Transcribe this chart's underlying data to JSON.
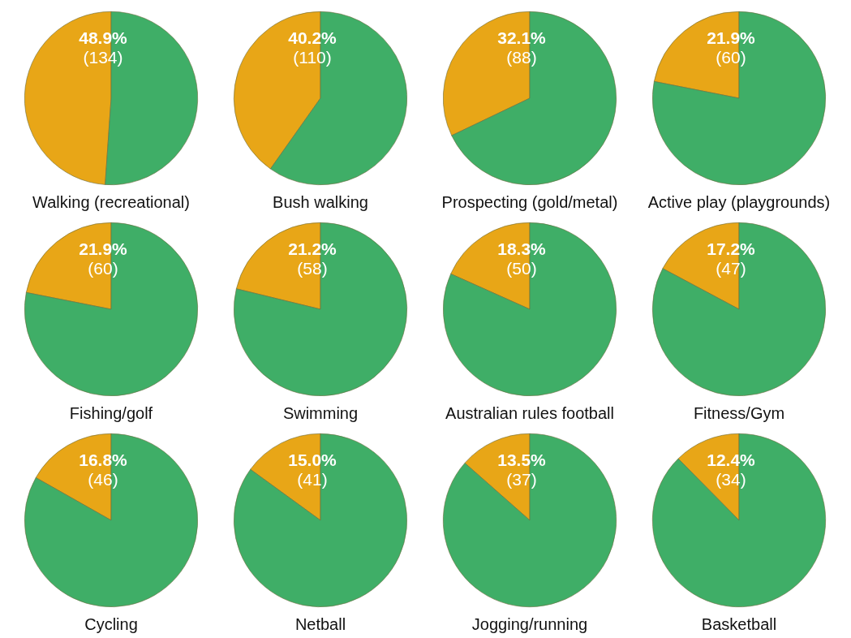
{
  "chart_data": [
    {
      "type": "pie",
      "title": "Walking (recreational)",
      "categories": [
        null,
        null
      ],
      "values": [
        48.9,
        51.1
      ],
      "colors": [
        "#e8a617",
        "#3fae67"
      ],
      "value_labels": [
        "48.9%\n(134)",
        null
      ],
      "legend": false
    },
    {
      "type": "pie",
      "title": "Bush walking",
      "categories": [
        null,
        null
      ],
      "values": [
        40.2,
        59.8
      ],
      "colors": [
        "#e8a617",
        "#3fae67"
      ],
      "value_labels": [
        "40.2%\n(110)",
        null
      ],
      "legend": false
    },
    {
      "type": "pie",
      "title": "Prospecting (gold/metal)",
      "categories": [
        null,
        null
      ],
      "values": [
        32.1,
        67.9
      ],
      "colors": [
        "#e8a617",
        "#3fae67"
      ],
      "value_labels": [
        "32.1%\n(88)",
        null
      ],
      "legend": false
    },
    {
      "type": "pie",
      "title": "Active play (playgrounds)",
      "categories": [
        null,
        null
      ],
      "values": [
        21.9,
        78.1
      ],
      "colors": [
        "#e8a617",
        "#3fae67"
      ],
      "value_labels": [
        "21.9%\n(60)",
        null
      ],
      "legend": false
    },
    {
      "type": "pie",
      "title": "Fishing/golf",
      "categories": [
        null,
        null
      ],
      "values": [
        21.9,
        78.1
      ],
      "colors": [
        "#e8a617",
        "#3fae67"
      ],
      "value_labels": [
        "21.9%\n(60)",
        null
      ],
      "legend": false
    },
    {
      "type": "pie",
      "title": "Swimming",
      "categories": [
        null,
        null
      ],
      "values": [
        21.2,
        78.8
      ],
      "colors": [
        "#e8a617",
        "#3fae67"
      ],
      "value_labels": [
        "21.2%\n(58)",
        null
      ],
      "legend": false
    },
    {
      "type": "pie",
      "title": "Australian rules football",
      "categories": [
        null,
        null
      ],
      "values": [
        18.3,
        81.7
      ],
      "colors": [
        "#e8a617",
        "#3fae67"
      ],
      "value_labels": [
        "18.3%\n(50)",
        null
      ],
      "legend": false
    },
    {
      "type": "pie",
      "title": "Fitness/Gym",
      "categories": [
        null,
        null
      ],
      "values": [
        17.2,
        82.8
      ],
      "colors": [
        "#e8a617",
        "#3fae67"
      ],
      "value_labels": [
        "17.2%\n(47)",
        null
      ],
      "legend": false
    },
    {
      "type": "pie",
      "title": "Cycling",
      "categories": [
        null,
        null
      ],
      "values": [
        16.8,
        83.2
      ],
      "colors": [
        "#e8a617",
        "#3fae67"
      ],
      "value_labels": [
        "16.8%\n(46)",
        null
      ],
      "legend": false
    },
    {
      "type": "pie",
      "title": "Netball",
      "categories": [
        null,
        null
      ],
      "values": [
        15.0,
        85.0
      ],
      "colors": [
        "#e8a617",
        "#3fae67"
      ],
      "value_labels": [
        "15.0%\n(41)",
        null
      ],
      "legend": false
    },
    {
      "type": "pie",
      "title": "Jogging/running",
      "categories": [
        null,
        null
      ],
      "values": [
        13.5,
        86.5
      ],
      "colors": [
        "#e8a617",
        "#3fae67"
      ],
      "value_labels": [
        "13.5%\n(37)",
        null
      ],
      "legend": false
    },
    {
      "type": "pie",
      "title": "Basketball",
      "categories": [
        null,
        null
      ],
      "values": [
        12.4,
        87.6
      ],
      "colors": [
        "#e8a617",
        "#3fae67"
      ],
      "value_labels": [
        "12.4%\n(34)",
        null
      ],
      "legend": false
    }
  ]
}
